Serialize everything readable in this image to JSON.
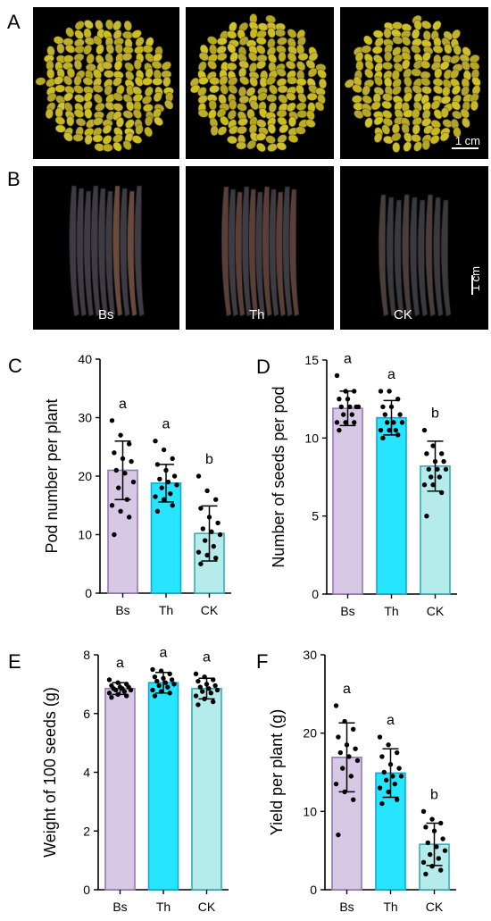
{
  "photo_panels": {
    "A": {
      "letter": "A",
      "scale_label": "1 cm"
    },
    "B": {
      "letter": "B",
      "scale_label": "1 cm",
      "captions": [
        "Bs",
        "Th",
        "CK"
      ]
    }
  },
  "colors": {
    "Bs": "#d7c8e6",
    "Th": "#27e5ff",
    "CK": "#b6ebec",
    "Bs_edge": "#9878b4",
    "Th_edge": "#13a9cc",
    "CK_edge": "#2fb1b6",
    "seed": "#b7a62a",
    "pod": "#3c3a3e"
  },
  "chart_data": [
    {
      "panel": "C",
      "type": "bar",
      "categories": [
        "Bs",
        "Th",
        "CK"
      ],
      "values": [
        21,
        18.8,
        10.2
      ],
      "errors": [
        5,
        3.2,
        4.7
      ],
      "letters": [
        "a",
        "a",
        "b"
      ],
      "ylabel": "Pod number per plant",
      "ylim": [
        0,
        40
      ],
      "yticks": [
        0,
        10,
        20,
        30,
        40
      ],
      "points": [
        [
          29.5,
          27,
          25.5,
          24,
          23,
          22.5,
          21,
          20.5,
          19,
          18,
          16,
          15,
          14,
          13,
          10
        ],
        [
          26,
          24.5,
          23,
          22,
          21,
          20,
          19.5,
          19,
          18.5,
          18,
          17,
          16.5,
          16,
          15,
          14
        ],
        [
          20,
          17.5,
          16,
          14.5,
          13,
          12,
          11,
          10.5,
          10,
          9,
          8,
          7,
          6.5,
          6,
          5
        ]
      ]
    },
    {
      "panel": "D",
      "type": "bar",
      "categories": [
        "Bs",
        "Th",
        "CK"
      ],
      "values": [
        11.9,
        11.3,
        8.2
      ],
      "errors": [
        1.1,
        1.1,
        1.6
      ],
      "letters": [
        "a",
        "a",
        "b"
      ],
      "ylabel": "Number of seeds per pod",
      "ylim": [
        0,
        15
      ],
      "yticks": [
        0,
        5,
        10,
        15
      ],
      "points": [
        [
          14,
          13,
          13,
          12.5,
          12.5,
          12,
          12,
          12,
          12,
          11.5,
          11.5,
          11,
          11,
          11,
          10.5
        ],
        [
          13,
          13,
          12.5,
          12,
          12,
          11.5,
          11.5,
          11,
          11,
          11,
          10.5,
          10.5,
          10.5,
          10.2,
          10
        ],
        [
          10.5,
          9.5,
          9,
          9,
          8.5,
          8.5,
          8,
          8,
          8,
          7.5,
          7.5,
          7,
          7,
          6.5,
          5
        ]
      ]
    },
    {
      "panel": "E",
      "type": "bar",
      "categories": [
        "Bs",
        "Th",
        "CK"
      ],
      "values": [
        6.85,
        7.05,
        6.85
      ],
      "errors": [
        0.2,
        0.35,
        0.35
      ],
      "letters": [
        "a",
        "a",
        "a"
      ],
      "ylabel": "Weight of 100 seeds (g)",
      "ylim": [
        0,
        8
      ],
      "yticks": [
        0,
        2,
        4,
        6,
        8
      ],
      "points": [
        [
          7.15,
          7.05,
          7.0,
          6.95,
          6.9,
          6.9,
          6.85,
          6.85,
          6.8,
          6.8,
          6.75,
          6.7,
          6.65,
          6.6,
          6.55
        ],
        [
          7.5,
          7.45,
          7.35,
          7.25,
          7.2,
          7.15,
          7.1,
          7.05,
          7.0,
          6.95,
          6.9,
          6.8,
          6.75,
          6.7,
          6.6
        ],
        [
          7.35,
          7.25,
          7.15,
          7.1,
          7.0,
          6.95,
          6.9,
          6.85,
          6.8,
          6.75,
          6.7,
          6.6,
          6.5,
          6.4,
          6.3
        ]
      ]
    },
    {
      "panel": "F",
      "type": "bar",
      "categories": [
        "Bs",
        "Th",
        "CK"
      ],
      "values": [
        16.9,
        14.9,
        5.8
      ],
      "errors": [
        4.4,
        3.1,
        2.7
      ],
      "letters": [
        "a",
        "a",
        "b"
      ],
      "ylabel": "Yield per plant (g)",
      "ylim": [
        0,
        30
      ],
      "yticks": [
        0,
        10,
        20,
        30
      ],
      "points": [
        [
          23.5,
          21.5,
          20.5,
          19.5,
          18.5,
          18,
          17.5,
          17,
          16.5,
          15.5,
          14.5,
          13.5,
          12.5,
          11.5,
          7
        ],
        [
          19.5,
          18.5,
          17.5,
          17,
          16,
          15.5,
          15,
          14.5,
          14.5,
          14,
          13.5,
          13,
          12.5,
          11.5,
          11
        ],
        [
          10,
          9,
          8.5,
          8,
          7.5,
          6.5,
          6,
          5.5,
          5,
          4.5,
          4,
          3.5,
          3,
          2.5,
          2
        ]
      ]
    }
  ]
}
